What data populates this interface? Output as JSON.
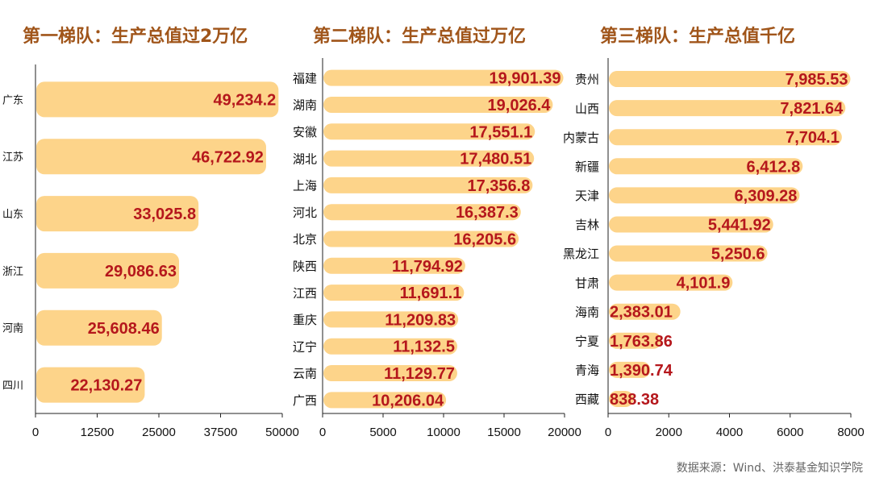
{
  "source": "数据来源：Wind、洪泰基金知识学院",
  "colors": {
    "bar": "#FDD48A",
    "value": "#B5171C",
    "title": "#A0551A",
    "axis": "#222222",
    "text": "#111111",
    "source": "#666666"
  },
  "chart_data": [
    {
      "type": "bar",
      "orientation": "horizontal",
      "title": "第一梯队：生产总值过2万亿",
      "categories": [
        "广东",
        "江苏",
        "山东",
        "浙江",
        "河南",
        "四川"
      ],
      "values": [
        49234.2,
        46722.92,
        33025.8,
        29086.63,
        25608.46,
        22130.27
      ],
      "value_labels": [
        "49,234.2",
        "46,722.92",
        "33,025.8",
        "29,086.63",
        "25,608.46",
        "22,130.27"
      ],
      "xlim": [
        0,
        50000
      ],
      "ticks": [
        0,
        12500,
        25000,
        37500,
        50000
      ],
      "tick_labels": [
        "0",
        "12500",
        "25000",
        "37500",
        "50000"
      ],
      "grid": false
    },
    {
      "type": "bar",
      "orientation": "horizontal",
      "title": "第二梯队：生产总值过万亿",
      "categories": [
        "福建",
        "湖南",
        "安徽",
        "湖北",
        "上海",
        "河北",
        "北京",
        "陕西",
        "江西",
        "重庆",
        "辽宁",
        "云南",
        "广西"
      ],
      "values": [
        19901.39,
        19026.4,
        17551.1,
        17480.51,
        17356.8,
        16387.3,
        16205.6,
        11794.92,
        11691.1,
        11209.83,
        11132.5,
        11129.77,
        10206.04
      ],
      "value_labels": [
        "19,901.39",
        "19,026.4",
        "17,551.1",
        "17,480.51",
        "17,356.8",
        "16,387.3",
        "16,205.6",
        "11,794.92",
        "11,691.1",
        "11,209.83",
        "11,132.5",
        "11,129.77",
        "10,206.04"
      ],
      "xlim": [
        0,
        20000
      ],
      "ticks": [
        0,
        5000,
        10000,
        15000,
        20000
      ],
      "tick_labels": [
        "0",
        "5000",
        "10000",
        "15000",
        "20000"
      ],
      "grid": false
    },
    {
      "type": "bar",
      "orientation": "horizontal",
      "title": "第三梯队：生产总值千亿",
      "categories": [
        "贵州",
        "山西",
        "内蒙古",
        "新疆",
        "天津",
        "吉林",
        "黑龙江",
        "甘肃",
        "海南",
        "宁夏",
        "青海",
        "西藏"
      ],
      "values": [
        7985.53,
        7821.64,
        7704.1,
        6412.8,
        6309.28,
        5441.92,
        5250.6,
        4101.9,
        2383.01,
        1763.86,
        1390.74,
        838.38
      ],
      "value_labels": [
        "7,985.53",
        "7,821.64",
        "7,704.1",
        "6,412.8",
        "6,309.28",
        "5,441.92",
        "5,250.6",
        "4,101.9",
        "2,383.01",
        "1,763.86",
        "1,390.74",
        "838.38"
      ],
      "xlim": [
        0,
        8000
      ],
      "ticks": [
        0,
        2000,
        4000,
        6000,
        8000
      ],
      "tick_labels": [
        "0",
        "2000",
        "4000",
        "6000",
        "8000"
      ],
      "grid": false
    }
  ]
}
